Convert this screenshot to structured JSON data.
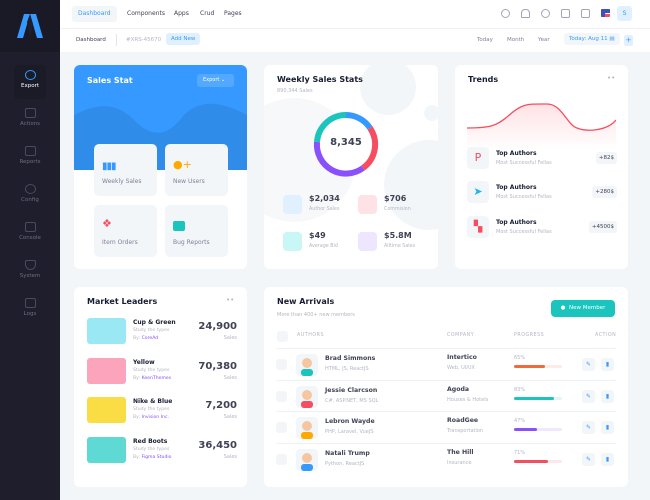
{
  "sidebar": {
    "items": [
      {
        "label": "Export",
        "icon": "gear-icon",
        "active": true
      },
      {
        "label": "Actions",
        "icon": "layers-icon"
      },
      {
        "label": "Reports",
        "icon": "chart-icon"
      },
      {
        "label": "Config",
        "icon": "drop-icon"
      },
      {
        "label": "Console",
        "icon": "monitor-icon"
      },
      {
        "label": "System",
        "icon": "shield-icon"
      },
      {
        "label": "Logs",
        "icon": "mail-icon"
      }
    ]
  },
  "topnav": {
    "items": [
      "Dashboard",
      "Components",
      "Apps",
      "Crud",
      "Pages"
    ],
    "user_initial": "S"
  },
  "subheader": {
    "title": "Dashboard",
    "code": "#XRS-45670",
    "add_new": "Add New",
    "filters": [
      "Today",
      "Month",
      "Year"
    ],
    "date": "Today: Aug 11"
  },
  "sales_stat": {
    "title": "Sales Stat",
    "export": "Export",
    "tiles": [
      "Weekly Sales",
      "New Users",
      "Item Orders",
      "Bug Reports"
    ]
  },
  "weekly": {
    "title": "Weekly Sales Stats",
    "subtitle": "890,344 Sales",
    "center": "8,345",
    "stats": [
      {
        "value": "$2,034",
        "label": "Author Sales",
        "color": "#3699ff",
        "bg": "#e1f0ff"
      },
      {
        "value": "$706",
        "label": "Commision",
        "color": "#f64e60",
        "bg": "#ffe2e5"
      },
      {
        "value": "$49",
        "label": "Average Bid",
        "color": "#1bc5bd",
        "bg": "#c9f7f5"
      },
      {
        "value": "$5.8M",
        "label": "Alltime Sales",
        "color": "#8950fc",
        "bg": "#eee5ff"
      }
    ]
  },
  "trends": {
    "title": "Trends",
    "items": [
      {
        "name": "Top Authors",
        "sub": "Most Successful Fellas",
        "badge": "+82$"
      },
      {
        "name": "Top Authors",
        "sub": "Most Successful Fellas",
        "badge": "+280$"
      },
      {
        "name": "Top Authors",
        "sub": "Most Successful Fellas",
        "badge": "+4500$"
      }
    ]
  },
  "market": {
    "title": "Market Leaders",
    "items": [
      {
        "name": "Cup & Green",
        "sub": "Study the types",
        "by": "By:",
        "author": "CoreAd",
        "value": "24,900",
        "unit": "Sales",
        "bg": "#9be8f5"
      },
      {
        "name": "Yellow",
        "sub": "Study the  types",
        "by": "By:",
        "author": "KeenThemes",
        "value": "70,380",
        "unit": "Sales",
        "bg": "#fda4bd"
      },
      {
        "name": "Nike & Blue",
        "sub": "Study the types",
        "by": "By:",
        "author": "Invision Inc.",
        "value": "7,200",
        "unit": "Sales",
        "bg": "#fadc45"
      },
      {
        "name": "Red Boots",
        "sub": "Study the types",
        "by": "By:",
        "author": "Figma Studio",
        "value": "36,450",
        "unit": "Sales",
        "bg": "#5ed9d4"
      }
    ]
  },
  "arrivals": {
    "title": "New Arrivals",
    "subtitle": "More than 400+ new members",
    "button": "New Member",
    "headers": [
      "AUTHORS",
      "COMPANY",
      "PROGRESS",
      "ACTION"
    ],
    "rows": [
      {
        "name": "Brad Simmons",
        "skills": "HTML, JS, ReactJS",
        "company": "Intertico",
        "type": "Web, UI/UX",
        "progress": "65%",
        "pct": 65,
        "color": "#f06a3b"
      },
      {
        "name": "Jessie Clarcson",
        "skills": "C#, ASP.NET, MS SQL",
        "company": "Agoda",
        "type": "Houses & Hotels",
        "progress": "83%",
        "pct": 83,
        "color": "#1bc5bd"
      },
      {
        "name": "Lebron Wayde",
        "skills": "PHP, Laravel, VueJS",
        "company": "RoadGee",
        "type": "Transportation",
        "progress": "47%",
        "pct": 47,
        "color": "#8950fc"
      },
      {
        "name": "Natali Trump",
        "skills": "Python, ReactJS",
        "company": "The Hill",
        "type": "Insurance",
        "progress": "71%",
        "pct": 71,
        "color": "#f64e60"
      }
    ]
  }
}
